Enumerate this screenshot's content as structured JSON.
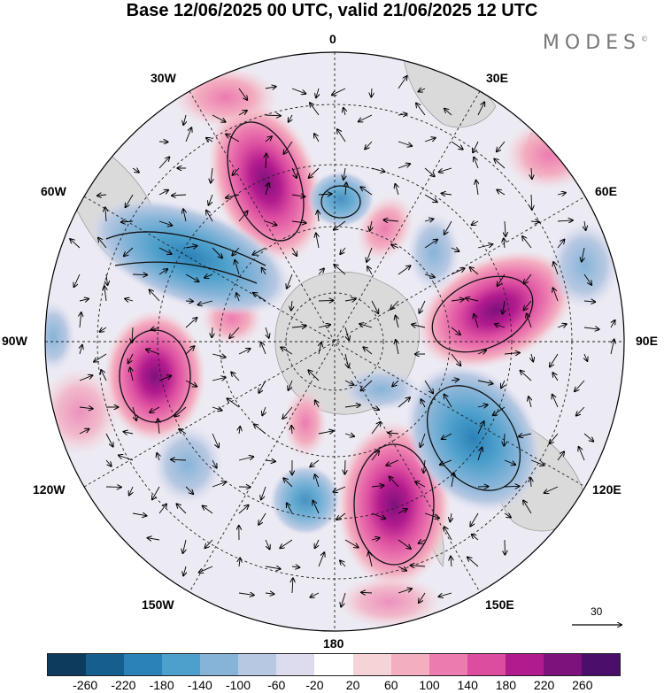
{
  "title": "Base 12/06/2025 00 UTC, valid 21/06/2025 12 UTC",
  "brand": "MODES",
  "brand_mark": "©",
  "lon_labels": {
    "n0": "0",
    "n30e": "30E",
    "n60e": "60E",
    "n90e": "90E",
    "n120e": "120E",
    "n150e": "150E",
    "n180": "180",
    "n150w": "150W",
    "n120w": "120W",
    "n90w": "90W",
    "n60w": "60W",
    "n30w": "30W"
  },
  "reference_vector": {
    "label": "30",
    "value": 30
  },
  "colorbar": {
    "ticks": [
      "-260",
      "-220",
      "-180",
      "-140",
      "-100",
      "-60",
      "-20",
      "20",
      "60",
      "100",
      "140",
      "180",
      "220",
      "260"
    ],
    "colors": [
      "#0d3b5e",
      "#155f8e",
      "#2b82b8",
      "#4ea0cc",
      "#86b4d8",
      "#b7c8e2",
      "#dcdcee",
      "#ffffff",
      "#f6d3d6",
      "#f3aec0",
      "#ec7bb0",
      "#dc4da0",
      "#b21b8e",
      "#7d127c",
      "#4a0e6b"
    ]
  },
  "map_icons": {
    "projection": "south-polar-stereographic",
    "field": "stream-function-anomaly",
    "vectors": "wind-vectors"
  }
}
